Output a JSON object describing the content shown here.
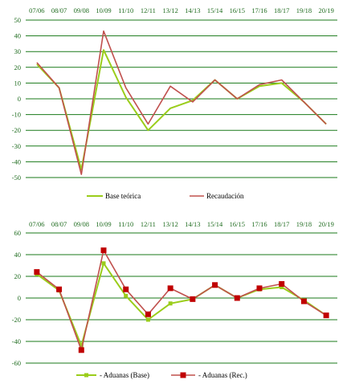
{
  "colors": {
    "grid": "#1a7a1a",
    "text": "#1e6b1e",
    "base": "#9acd1a",
    "rec": "#c0504d",
    "rec_marker": "#c00000"
  },
  "chart_data": [
    {
      "type": "line",
      "categories": [
        "07/06",
        "08/07",
        "09/08",
        "10/09",
        "11/10",
        "12/11",
        "13/12",
        "14/13",
        "15/14",
        "16/15",
        "17/16",
        "18/17",
        "19/18",
        "20/19"
      ],
      "ylim": [
        -50,
        50
      ],
      "yticks": [
        -50,
        -40,
        -30,
        -20,
        -10,
        0,
        10,
        20,
        30,
        40,
        50
      ],
      "grid": true,
      "legend_position": "bottom",
      "series": [
        {
          "name": "Base teórica",
          "values": [
            22,
            7,
            -45,
            31,
            1,
            -20,
            -6,
            -1,
            12,
            0,
            8,
            10,
            -2,
            -16
          ]
        },
        {
          "name": "Recaudación",
          "values": [
            23,
            7,
            -48,
            43,
            7,
            -16,
            8,
            -2,
            12,
            0,
            9,
            12,
            -2,
            -16
          ]
        }
      ]
    },
    {
      "type": "line",
      "categories": [
        "07/06",
        "08/07",
        "09/08",
        "10/09",
        "11/10",
        "12/11",
        "13/12",
        "14/13",
        "15/14",
        "16/15",
        "17/16",
        "18/17",
        "19/18",
        "20/19"
      ],
      "ylim": [
        -60,
        60
      ],
      "yticks": [
        -60,
        -40,
        -20,
        0,
        20,
        40,
        60
      ],
      "grid": true,
      "legend_position": "bottom",
      "series": [
        {
          "name": "- Aduanas (Base)",
          "values": [
            22,
            7,
            -44,
            32,
            2,
            -20,
            -5,
            -1,
            12,
            0,
            8,
            10,
            -2,
            -16
          ]
        },
        {
          "name": "- Aduanas (Rec.)",
          "values": [
            24,
            8,
            -48,
            44,
            8,
            -15,
            9,
            -1,
            12,
            0,
            9,
            13,
            -3,
            -16
          ]
        }
      ]
    }
  ]
}
